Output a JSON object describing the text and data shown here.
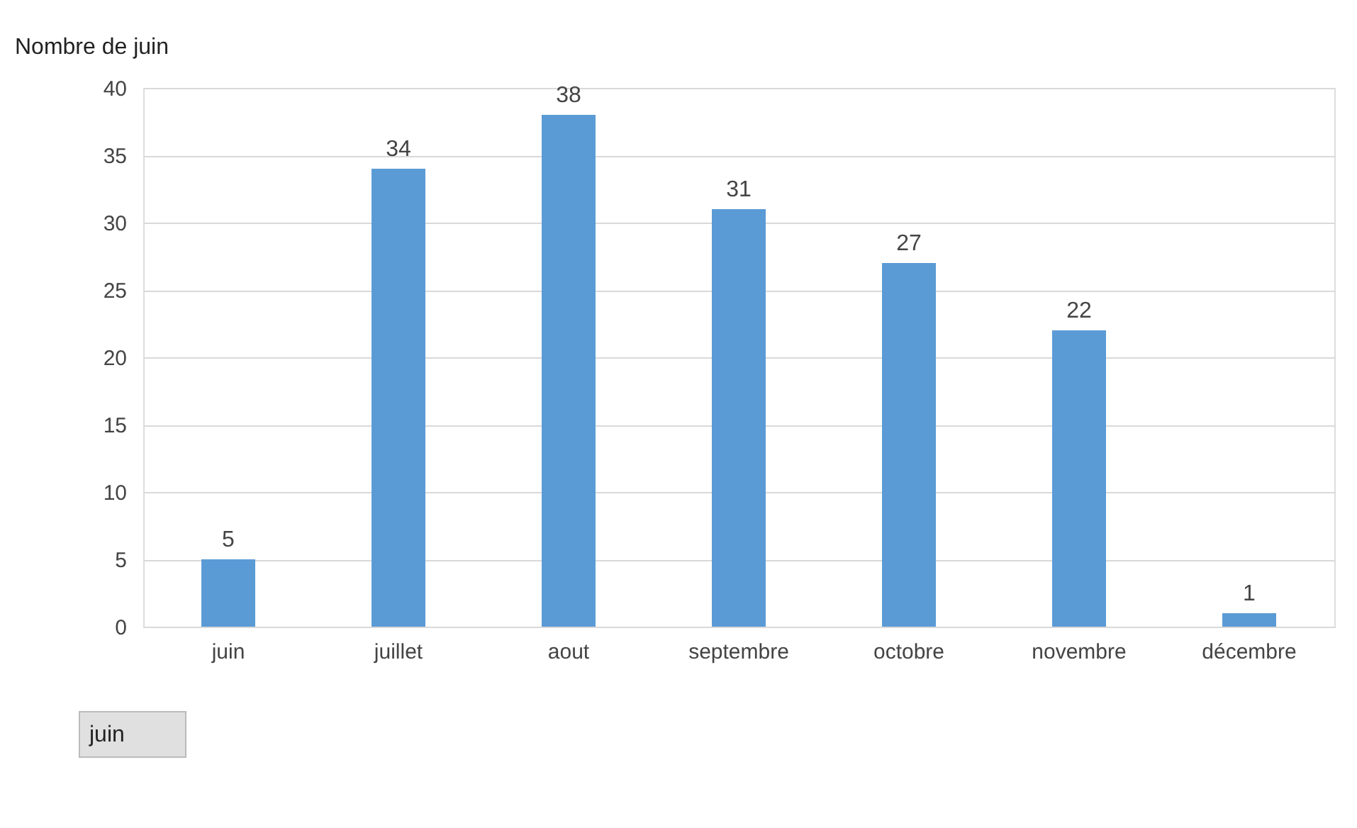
{
  "chart_data": {
    "type": "bar",
    "title": "Nombre de juin",
    "categories": [
      "juin",
      "juillet",
      "aout",
      "septembre",
      "octobre",
      "novembre",
      "décembre"
    ],
    "values": [
      5,
      34,
      38,
      31,
      27,
      22,
      1
    ],
    "color": "#5b9bd5",
    "ylim": [
      0,
      40
    ],
    "yticks": [
      0,
      5,
      10,
      15,
      20,
      25,
      30,
      35,
      40
    ],
    "grid": "y",
    "data_labels": true,
    "annotations": [
      "juin"
    ]
  }
}
